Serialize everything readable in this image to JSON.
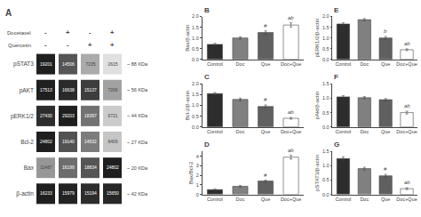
{
  "chart_data": [
    {
      "type": "heatmap",
      "title": "A",
      "treatments": [
        {
          "name": "Docetaxel",
          "signs": [
            "-",
            "+",
            "-",
            "+"
          ]
        },
        {
          "name": "Quercetin",
          "signs": [
            "-",
            "-",
            "+",
            "+"
          ]
        }
      ],
      "rows": [
        "pSTAT3",
        "pAKT",
        "pERK1/2",
        "Bcl-2",
        "Bax",
        "β-actin"
      ],
      "row_notes": [
        "~ 88 KDa",
        "~ 56 KDa",
        "~ 44 KDa",
        "~ 27 KDa",
        "~ 20 KDa",
        "~ 42 KDa"
      ],
      "cells": [
        [
          19201,
          14506,
          7235,
          2615
        ],
        [
          17513,
          16638,
          15137,
          7266
        ],
        [
          27430,
          29203,
          18397,
          6721
        ],
        [
          24802,
          19140,
          14532,
          6409
        ],
        [
          11487,
          16199,
          18834,
          24802
        ],
        [
          16233,
          15979,
          15194,
          15650
        ]
      ],
      "data_labels": true
    },
    {
      "type": "bar",
      "title": "B",
      "ylabel": "Bax/β-actin",
      "categories": [
        "Control",
        "Doc",
        "Que",
        "Doc+Que"
      ],
      "values": [
        0.7,
        1.0,
        1.25,
        1.6
      ],
      "errors": [
        0.05,
        0.05,
        0.08,
        0.1
      ],
      "colors": [
        "#2d2d2d",
        "#808080",
        "#606060",
        "#ffffff"
      ],
      "annotations": [
        {
          "category": "Que",
          "text": "#"
        },
        {
          "category": "Doc+Que",
          "text": "ab"
        }
      ],
      "ylim": [
        0,
        2.0
      ],
      "yticks": [
        {
          "value": 0,
          "label": "0.0"
        },
        0.5,
        {
          "value": 1,
          "label": "1.0"
        },
        1.5,
        {
          "value": 2,
          "label": "2.0"
        }
      ],
      "grid": false
    },
    {
      "type": "bar",
      "title": "C",
      "ylabel": "Bcl-2/β-actin",
      "categories": [
        "Control",
        "Doc",
        "Que",
        "Doc+Que"
      ],
      "values": [
        1.55,
        1.28,
        0.95,
        0.4
      ],
      "errors": [
        0.05,
        0.06,
        0.07,
        0.04
      ],
      "colors": [
        "#2d2d2d",
        "#808080",
        "#606060",
        "#ffffff"
      ],
      "annotations": [
        {
          "category": "Que",
          "text": "#"
        },
        {
          "category": "Doc+Que",
          "text": "ab"
        }
      ],
      "ylim": [
        0,
        2.0
      ],
      "yticks": [
        {
          "value": 0,
          "label": "0.0"
        },
        0.5,
        {
          "value": 1,
          "label": "1.0"
        },
        1.5,
        {
          "value": 2,
          "label": "2.0"
        }
      ],
      "grid": false
    },
    {
      "type": "bar",
      "title": "D",
      "ylabel": "Bax/Bcl-2",
      "categories": [
        "Control",
        "Doc",
        "Que",
        "Doc+Que"
      ],
      "values": [
        0.5,
        0.85,
        1.4,
        3.9
      ],
      "errors": [
        0.05,
        0.07,
        0.1,
        0.2
      ],
      "colors": [
        "#2d2d2d",
        "#808080",
        "#606060",
        "#ffffff"
      ],
      "annotations": [
        {
          "category": "Que",
          "text": "#"
        },
        {
          "category": "Doc+Que",
          "text": "ab"
        }
      ],
      "ylim": [
        0,
        4.5
      ],
      "yticks": [
        0,
        1,
        2,
        3,
        4
      ],
      "grid": false
    },
    {
      "type": "bar",
      "title": "E",
      "ylabel": "pERK1/2/β-actin",
      "categories": [
        "Control",
        "Doc",
        "Que",
        "Doc+Que"
      ],
      "values": [
        1.65,
        1.85,
        1.0,
        0.45
      ],
      "errors": [
        0.05,
        0.05,
        0.07,
        0.04
      ],
      "colors": [
        "#2d2d2d",
        "#808080",
        "#606060",
        "#ffffff"
      ],
      "annotations": [
        {
          "category": "Que",
          "text": "b"
        },
        {
          "category": "Doc+Que",
          "text": "ab"
        }
      ],
      "ylim": [
        0,
        2.0
      ],
      "yticks": [
        {
          "value": 0,
          "label": "0.0"
        },
        0.5,
        {
          "value": 1,
          "label": "1.0"
        },
        1.5,
        {
          "value": 2,
          "label": "2.0"
        }
      ],
      "grid": false
    },
    {
      "type": "bar",
      "title": "F",
      "ylabel": "pAkt/β-actin",
      "categories": [
        "Control",
        "Doc",
        "Que",
        "Doc+Que"
      ],
      "values": [
        1.05,
        1.02,
        0.95,
        0.5
      ],
      "errors": [
        0.04,
        0.04,
        0.04,
        0.05
      ],
      "colors": [
        "#2d2d2d",
        "#808080",
        "#606060",
        "#ffffff"
      ],
      "annotations": [
        {
          "category": "Doc+Que",
          "text": "ab"
        }
      ],
      "ylim": [
        0,
        1.5
      ],
      "yticks": [
        {
          "value": 0,
          "label": "0.0"
        },
        0.5,
        {
          "value": 1,
          "label": "1.0"
        },
        1.5
      ],
      "grid": false
    },
    {
      "type": "bar",
      "title": "G",
      "ylabel": "pSTAT3/β-actin",
      "categories": [
        "Control",
        "Doc",
        "Que",
        "Doc+Que"
      ],
      "values": [
        1.25,
        0.9,
        0.65,
        0.2
      ],
      "errors": [
        0.06,
        0.05,
        0.05,
        0.03
      ],
      "colors": [
        "#2d2d2d",
        "#808080",
        "#606060",
        "#ffffff"
      ],
      "annotations": [
        {
          "category": "Que",
          "text": "#"
        },
        {
          "category": "Doc+Que",
          "text": "ab"
        }
      ],
      "ylim": [
        0,
        1.5
      ],
      "yticks": [
        {
          "value": 0,
          "label": "0.0"
        },
        0.5,
        {
          "value": 1,
          "label": "1.0"
        },
        1.5
      ],
      "grid": false
    }
  ]
}
